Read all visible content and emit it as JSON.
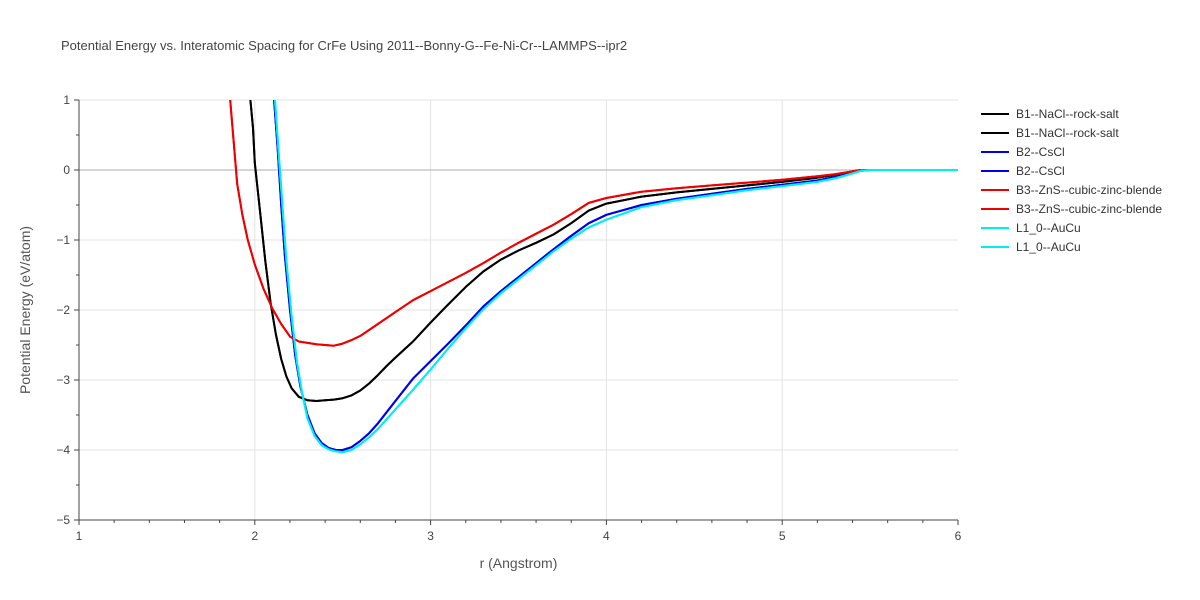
{
  "chart_data": {
    "type": "line",
    "title": "Potential Energy vs. Interatomic Spacing for CrFe Using 2011--Bonny-G--Fe-Ni-Cr--LAMMPS--ipr2",
    "xlabel": "r (Angstrom)",
    "ylabel": "Potential Energy (eV/atom)",
    "xlim": [
      1,
      6
    ],
    "ylim": [
      -5,
      1
    ],
    "xticks": [
      "1",
      "2",
      "3",
      "4",
      "5",
      "6"
    ],
    "yticks": [
      "1",
      "0",
      "−1",
      "−2",
      "−3",
      "−4",
      "−5"
    ],
    "grid": true,
    "legend_position": "right",
    "series": [
      {
        "name": "B1--NaCl--rock-salt",
        "color": "#000000",
        "x": [
          1.975,
          1.99,
          2.0,
          2.03,
          2.06,
          2.09,
          2.12,
          2.15,
          2.18,
          2.21,
          2.25,
          2.3,
          2.35,
          2.4,
          2.45,
          2.5,
          2.55,
          2.6,
          2.65,
          2.7,
          2.75,
          2.8,
          2.9,
          3.0,
          3.1,
          3.2,
          3.3,
          3.4,
          3.5,
          3.6,
          3.7,
          3.8,
          3.9,
          4.0,
          4.2,
          4.4,
          4.6,
          4.8,
          5.0,
          5.2,
          5.3,
          5.4,
          5.45,
          5.5,
          5.6,
          6.0
        ],
        "y": [
          1.0,
          0.6,
          0.1,
          -0.6,
          -1.3,
          -1.9,
          -2.35,
          -2.7,
          -2.95,
          -3.12,
          -3.24,
          -3.29,
          -3.3,
          -3.29,
          -3.28,
          -3.26,
          -3.22,
          -3.15,
          -3.05,
          -2.93,
          -2.8,
          -2.68,
          -2.45,
          -2.18,
          -1.92,
          -1.67,
          -1.45,
          -1.28,
          -1.15,
          -1.04,
          -0.92,
          -0.76,
          -0.58,
          -0.48,
          -0.38,
          -0.32,
          -0.27,
          -0.22,
          -0.17,
          -0.11,
          -0.07,
          -0.02,
          0.0,
          0.0,
          0.0,
          0.0
        ]
      },
      {
        "name": "B1--NaCl--rock-salt",
        "color": "#000000",
        "x": [
          1.975,
          1.99,
          2.0,
          2.03,
          2.06,
          2.09,
          2.12,
          2.15,
          2.18,
          2.21,
          2.25,
          2.3,
          2.35,
          2.4,
          2.45,
          2.5,
          2.55,
          2.6,
          2.65,
          2.7,
          2.75,
          2.8,
          2.9,
          3.0,
          3.1,
          3.2,
          3.3,
          3.4,
          3.5,
          3.6,
          3.7,
          3.8,
          3.9,
          4.0,
          4.2,
          4.4,
          4.6,
          4.8,
          5.0,
          5.2,
          5.3,
          5.4,
          5.45,
          5.5,
          5.6,
          6.0
        ],
        "y": [
          1.0,
          0.6,
          0.1,
          -0.6,
          -1.3,
          -1.9,
          -2.35,
          -2.7,
          -2.95,
          -3.12,
          -3.24,
          -3.29,
          -3.3,
          -3.29,
          -3.28,
          -3.26,
          -3.22,
          -3.15,
          -3.05,
          -2.93,
          -2.8,
          -2.68,
          -2.45,
          -2.18,
          -1.92,
          -1.67,
          -1.45,
          -1.28,
          -1.15,
          -1.04,
          -0.92,
          -0.76,
          -0.58,
          -0.48,
          -0.38,
          -0.32,
          -0.27,
          -0.22,
          -0.17,
          -0.11,
          -0.07,
          -0.02,
          0.0,
          0.0,
          0.0,
          0.0
        ]
      },
      {
        "name": "B2--CsCl",
        "color": "#0000ee",
        "x": [
          2.11,
          2.13,
          2.15,
          2.17,
          2.2,
          2.23,
          2.26,
          2.3,
          2.34,
          2.38,
          2.42,
          2.46,
          2.5,
          2.55,
          2.6,
          2.65,
          2.7,
          2.8,
          2.9,
          3.0,
          3.1,
          3.2,
          3.3,
          3.4,
          3.5,
          3.6,
          3.7,
          3.8,
          3.9,
          4.0,
          4.2,
          4.4,
          4.6,
          4.8,
          5.0,
          5.2,
          5.3,
          5.4,
          5.45,
          5.5,
          5.6,
          6.0
        ],
        "y": [
          1.0,
          0.3,
          -0.5,
          -1.2,
          -2.0,
          -2.65,
          -3.1,
          -3.5,
          -3.76,
          -3.9,
          -3.97,
          -4.0,
          -4.0,
          -3.96,
          -3.87,
          -3.76,
          -3.62,
          -3.3,
          -2.98,
          -2.73,
          -2.48,
          -2.22,
          -1.95,
          -1.73,
          -1.53,
          -1.33,
          -1.13,
          -0.94,
          -0.76,
          -0.64,
          -0.5,
          -0.41,
          -0.34,
          -0.27,
          -0.21,
          -0.15,
          -0.1,
          -0.04,
          -0.01,
          0.0,
          0.0,
          0.0
        ]
      },
      {
        "name": "B2--CsCl",
        "color": "#0000ee",
        "x": [
          2.11,
          2.13,
          2.15,
          2.17,
          2.2,
          2.23,
          2.26,
          2.3,
          2.34,
          2.38,
          2.42,
          2.46,
          2.5,
          2.55,
          2.6,
          2.65,
          2.7,
          2.8,
          2.9,
          3.0,
          3.1,
          3.2,
          3.3,
          3.4,
          3.5,
          3.6,
          3.7,
          3.8,
          3.9,
          4.0,
          4.2,
          4.4,
          4.6,
          4.8,
          5.0,
          5.2,
          5.3,
          5.4,
          5.45,
          5.5,
          5.6,
          6.0
        ],
        "y": [
          1.0,
          0.3,
          -0.5,
          -1.2,
          -2.0,
          -2.65,
          -3.1,
          -3.5,
          -3.76,
          -3.9,
          -3.97,
          -4.0,
          -4.0,
          -3.96,
          -3.87,
          -3.76,
          -3.62,
          -3.3,
          -2.98,
          -2.73,
          -2.48,
          -2.22,
          -1.95,
          -1.73,
          -1.53,
          -1.33,
          -1.13,
          -0.94,
          -0.76,
          -0.64,
          -0.5,
          -0.41,
          -0.34,
          -0.27,
          -0.21,
          -0.15,
          -0.1,
          -0.04,
          -0.01,
          0.0,
          0.0,
          0.0
        ]
      },
      {
        "name": "B3--ZnS--cubic-zinc-blende",
        "color": "#ee0000",
        "x": [
          1.86,
          1.88,
          1.9,
          1.93,
          1.96,
          2.0,
          2.05,
          2.1,
          2.15,
          2.2,
          2.25,
          2.3,
          2.35,
          2.4,
          2.45,
          2.5,
          2.55,
          2.6,
          2.7,
          2.8,
          2.9,
          3.0,
          3.1,
          3.2,
          3.3,
          3.4,
          3.5,
          3.6,
          3.7,
          3.8,
          3.9,
          4.0,
          4.2,
          4.4,
          4.6,
          4.8,
          5.0,
          5.2,
          5.3,
          5.4,
          5.45,
          5.5,
          5.6,
          6.0
        ],
        "y": [
          1.0,
          0.4,
          -0.2,
          -0.65,
          -1.0,
          -1.35,
          -1.7,
          -1.98,
          -2.2,
          -2.38,
          -2.45,
          -2.47,
          -2.49,
          -2.5,
          -2.51,
          -2.48,
          -2.43,
          -2.37,
          -2.2,
          -2.03,
          -1.86,
          -1.73,
          -1.6,
          -1.47,
          -1.33,
          -1.18,
          -1.04,
          -0.91,
          -0.78,
          -0.63,
          -0.47,
          -0.4,
          -0.31,
          -0.26,
          -0.22,
          -0.18,
          -0.14,
          -0.09,
          -0.06,
          -0.02,
          0.0,
          0.0,
          0.0,
          0.0
        ]
      },
      {
        "name": "B3--ZnS--cubic-zinc-blende",
        "color": "#ee0000",
        "x": [
          1.86,
          1.88,
          1.9,
          1.93,
          1.96,
          2.0,
          2.05,
          2.1,
          2.15,
          2.2,
          2.25,
          2.3,
          2.35,
          2.4,
          2.45,
          2.5,
          2.55,
          2.6,
          2.7,
          2.8,
          2.9,
          3.0,
          3.1,
          3.2,
          3.3,
          3.4,
          3.5,
          3.6,
          3.7,
          3.8,
          3.9,
          4.0,
          4.2,
          4.4,
          4.6,
          4.8,
          5.0,
          5.2,
          5.3,
          5.4,
          5.45,
          5.5,
          5.6,
          6.0
        ],
        "y": [
          1.0,
          0.4,
          -0.2,
          -0.65,
          -1.0,
          -1.35,
          -1.7,
          -1.98,
          -2.2,
          -2.38,
          -2.45,
          -2.47,
          -2.49,
          -2.5,
          -2.51,
          -2.48,
          -2.43,
          -2.37,
          -2.2,
          -2.03,
          -1.86,
          -1.73,
          -1.6,
          -1.47,
          -1.33,
          -1.18,
          -1.04,
          -0.91,
          -0.78,
          -0.63,
          -0.47,
          -0.4,
          -0.31,
          -0.26,
          -0.22,
          -0.18,
          -0.14,
          -0.09,
          -0.06,
          -0.02,
          0.0,
          0.0,
          0.0,
          0.0
        ]
      },
      {
        "name": "L1_0--AuCu",
        "color": "#00eeee",
        "x": [
          2.115,
          2.14,
          2.16,
          2.18,
          2.21,
          2.24,
          2.27,
          2.3,
          2.34,
          2.38,
          2.42,
          2.46,
          2.5,
          2.55,
          2.6,
          2.65,
          2.7,
          2.8,
          2.9,
          3.0,
          3.1,
          3.2,
          3.3,
          3.4,
          3.5,
          3.6,
          3.7,
          3.8,
          3.9,
          4.0,
          4.2,
          4.4,
          4.6,
          4.8,
          5.0,
          5.2,
          5.3,
          5.4,
          5.45,
          5.5,
          5.6,
          6.0
        ],
        "y": [
          1.0,
          0.1,
          -0.6,
          -1.3,
          -2.1,
          -2.75,
          -3.2,
          -3.55,
          -3.8,
          -3.93,
          -3.99,
          -4.02,
          -4.03,
          -4.0,
          -3.92,
          -3.82,
          -3.7,
          -3.42,
          -3.14,
          -2.85,
          -2.55,
          -2.26,
          -1.99,
          -1.76,
          -1.56,
          -1.36,
          -1.16,
          -0.98,
          -0.82,
          -0.71,
          -0.53,
          -0.43,
          -0.36,
          -0.29,
          -0.23,
          -0.17,
          -0.12,
          -0.05,
          -0.01,
          0.0,
          0.0,
          0.0
        ]
      },
      {
        "name": "L1_0--AuCu",
        "color": "#00eeee",
        "x": [
          2.115,
          2.14,
          2.16,
          2.18,
          2.21,
          2.24,
          2.27,
          2.3,
          2.34,
          2.38,
          2.42,
          2.46,
          2.5,
          2.55,
          2.6,
          2.65,
          2.7,
          2.8,
          2.9,
          3.0,
          3.1,
          3.2,
          3.3,
          3.4,
          3.5,
          3.6,
          3.7,
          3.8,
          3.9,
          4.0,
          4.2,
          4.4,
          4.6,
          4.8,
          5.0,
          5.2,
          5.3,
          5.4,
          5.45,
          5.5,
          5.6,
          6.0
        ],
        "y": [
          1.0,
          0.1,
          -0.6,
          -1.3,
          -2.1,
          -2.75,
          -3.2,
          -3.55,
          -3.8,
          -3.93,
          -3.99,
          -4.02,
          -4.03,
          -4.0,
          -3.92,
          -3.82,
          -3.7,
          -3.42,
          -3.14,
          -2.85,
          -2.55,
          -2.26,
          -1.99,
          -1.76,
          -1.56,
          -1.36,
          -1.16,
          -0.98,
          -0.82,
          -0.71,
          -0.53,
          -0.43,
          -0.36,
          -0.29,
          -0.23,
          -0.17,
          -0.12,
          -0.05,
          -0.01,
          0.0,
          0.0,
          0.0
        ]
      }
    ]
  }
}
